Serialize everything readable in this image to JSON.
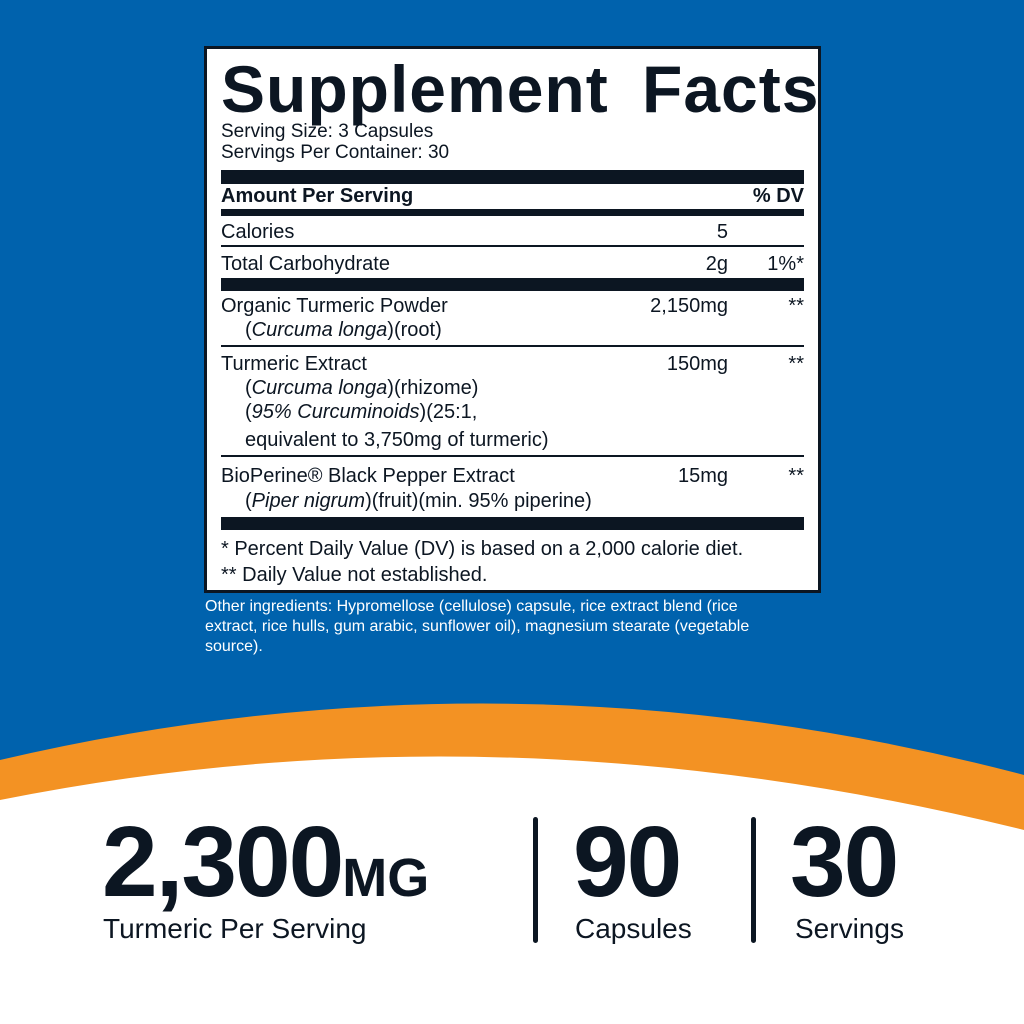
{
  "colors": {
    "background_blue": "#0062ad",
    "orange": "#f39223",
    "ink": "#0c1622"
  },
  "label": {
    "title": "Supplement Facts",
    "serving_size": "Serving Size: 3 Capsules",
    "servings_per_container": "Servings Per Container: 30",
    "header_amount": "Amount Per Serving",
    "header_dv": "% DV",
    "rows": [
      {
        "name": "Calories",
        "amount": "5",
        "dv": ""
      },
      {
        "name": "Total Carbohydrate",
        "amount": "2g",
        "dv": "1%*"
      },
      {
        "name": "Organic Turmeric Powder",
        "detail": [
          "(Curcuma longa)(root)"
        ],
        "amount": "2,150mg",
        "dv": "**"
      },
      {
        "name": "Turmeric Extract",
        "detail": [
          "(Curcuma longa)(rhizome)",
          "(95% Curcuminoids)(25:1,",
          "equivalent to 3,750mg of turmeric)"
        ],
        "amount": "150mg",
        "dv": "**"
      },
      {
        "name": "BioPerine® Black Pepper Extract",
        "detail": [
          "(Piper nigrum)(fruit)(min. 95% piperine)"
        ],
        "amount": "15mg",
        "dv": "**"
      }
    ],
    "footnotes": [
      "* Percent Daily Value (DV) is based on a 2,000 calorie diet.",
      "** Daily Value not established."
    ]
  },
  "other_ingredients": "Other ingredients: Hypromellose (cellulose) capsule, rice extract blend (rice extract, rice hulls, gum arabic, sunflower oil), magnesium stearate (vegetable source).",
  "stats": [
    {
      "value": "2,300",
      "unit": "MG",
      "label": "Turmeric Per Serving"
    },
    {
      "value": "90",
      "label": "Capsules"
    },
    {
      "value": "30",
      "label": "Servings"
    }
  ]
}
